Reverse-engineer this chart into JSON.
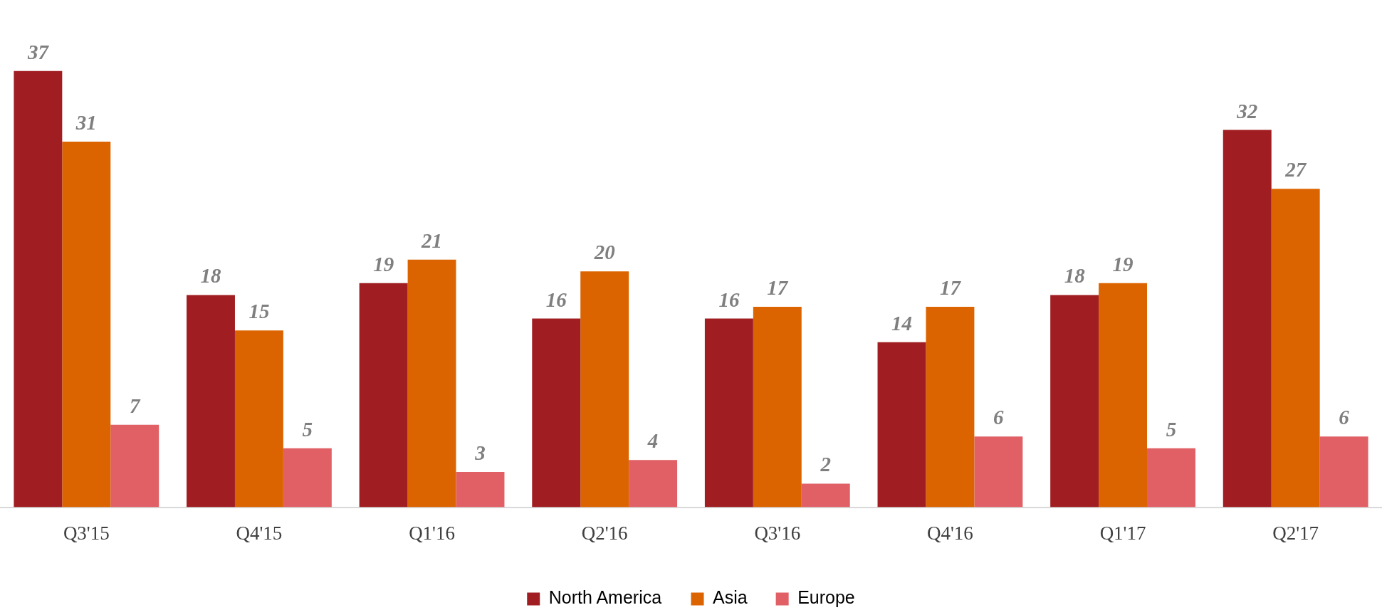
{
  "chart_data": {
    "type": "bar",
    "categories": [
      "Q3'15",
      "Q4'15",
      "Q1'16",
      "Q2'16",
      "Q3'16",
      "Q4'16",
      "Q1'17",
      "Q2'17"
    ],
    "series": [
      {
        "name": "North America",
        "color": "#a01e21",
        "values": [
          37,
          18,
          19,
          16,
          16,
          14,
          18,
          32
        ]
      },
      {
        "name": "Asia",
        "color": "#dc6400",
        "values": [
          31,
          15,
          21,
          20,
          17,
          17,
          19,
          27
        ]
      },
      {
        "name": "Europe",
        "color": "#e06065",
        "values": [
          7,
          5,
          3,
          4,
          2,
          6,
          5,
          6
        ]
      }
    ],
    "data_labels": true,
    "legend": "bottom",
    "grid": false,
    "tick_labels": "x"
  }
}
